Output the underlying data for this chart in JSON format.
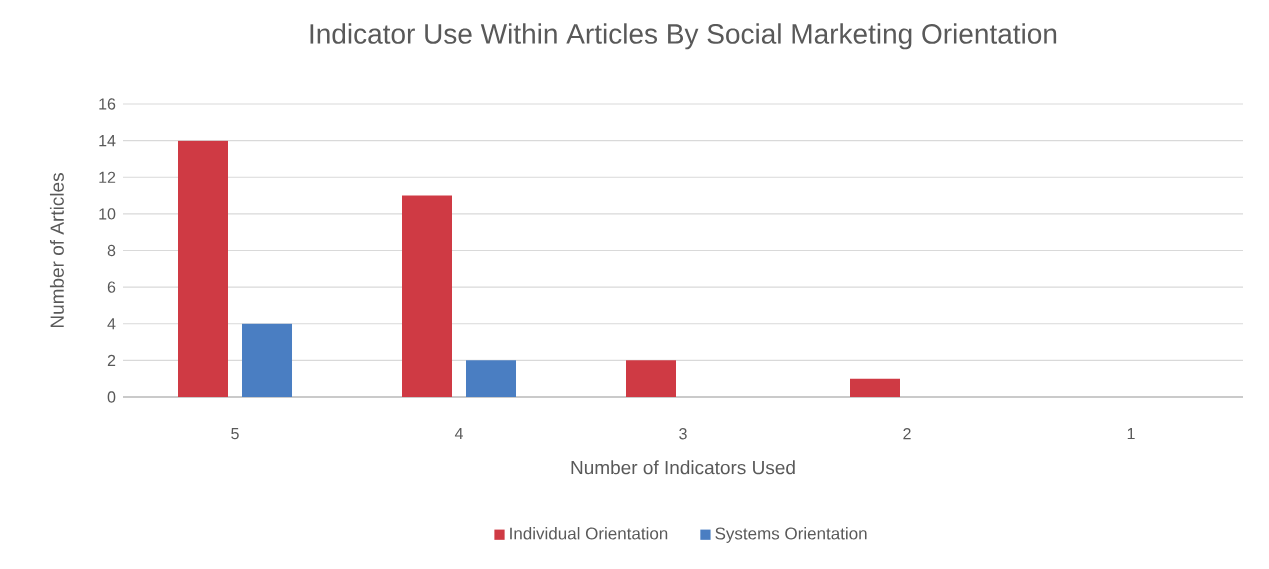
{
  "chart_data": {
    "type": "bar",
    "title": "Indicator Use Within Articles By Social Marketing Orientation",
    "xlabel": "Number of Indicators Used",
    "ylabel": "Number of Articles",
    "categories": [
      "5",
      "4",
      "3",
      "2",
      "1"
    ],
    "series": [
      {
        "name": "Individual Orientation",
        "color": "#cf3a44",
        "values": [
          14,
          11,
          2,
          1,
          0
        ]
      },
      {
        "name": "Systems Orientation",
        "color": "#4a7ec2",
        "values": [
          4,
          2,
          0,
          0,
          0
        ]
      }
    ],
    "ylim": [
      0,
      16
    ],
    "yticks": [
      0,
      2,
      4,
      6,
      8,
      10,
      12,
      14,
      16
    ],
    "grid": "y",
    "legend": "bottom"
  }
}
